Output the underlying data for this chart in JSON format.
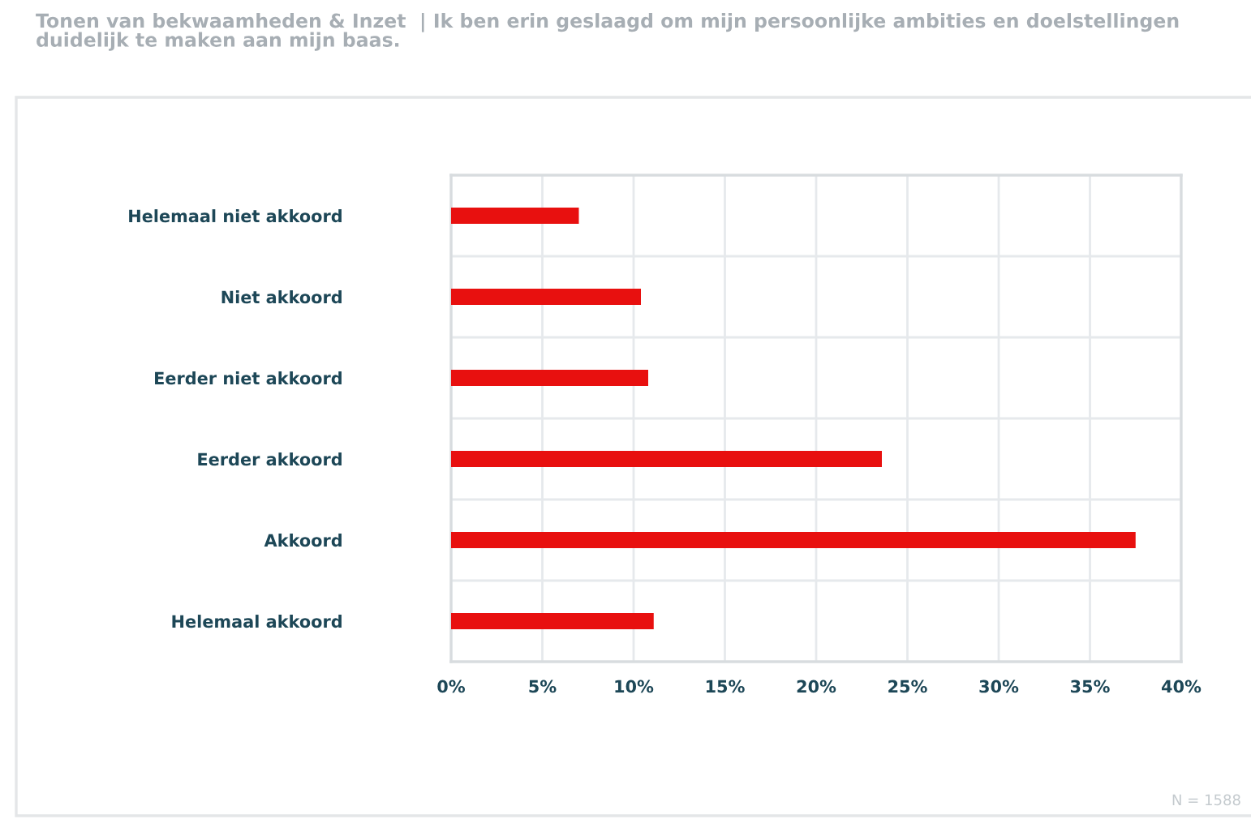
{
  "chart_data": {
    "type": "bar",
    "orientation": "horizontal",
    "title": "Tonen van bekwaamheden & Inzet  | Ik ben erin geslaagd om mijn persoonlijke ambities en doelstellingen duidelijk te maken aan mijn baas.",
    "categories": [
      "Helemaal niet akkoord",
      "Niet akkoord",
      "Eerder niet akkoord",
      "Eerder akkoord",
      "Akkoord",
      "Helemaal akkoord"
    ],
    "values": [
      7.0,
      10.4,
      10.8,
      23.6,
      37.5,
      11.1
    ],
    "color": "#e8100f",
    "xlim": [
      0,
      40
    ],
    "xticks": [
      {
        "value": 0,
        "label": "0%"
      },
      {
        "value": 5,
        "label": "5%"
      },
      {
        "value": 10,
        "label": "10%"
      },
      {
        "value": 15,
        "label": "15%"
      },
      {
        "value": 20,
        "label": "20%"
      },
      {
        "value": 25,
        "label": "25%"
      },
      {
        "value": 30,
        "label": "30%"
      },
      {
        "value": 35,
        "label": "35%"
      },
      {
        "value": 40,
        "label": "40%"
      }
    ],
    "grid": true,
    "annotations": [
      "N = 1588"
    ]
  }
}
